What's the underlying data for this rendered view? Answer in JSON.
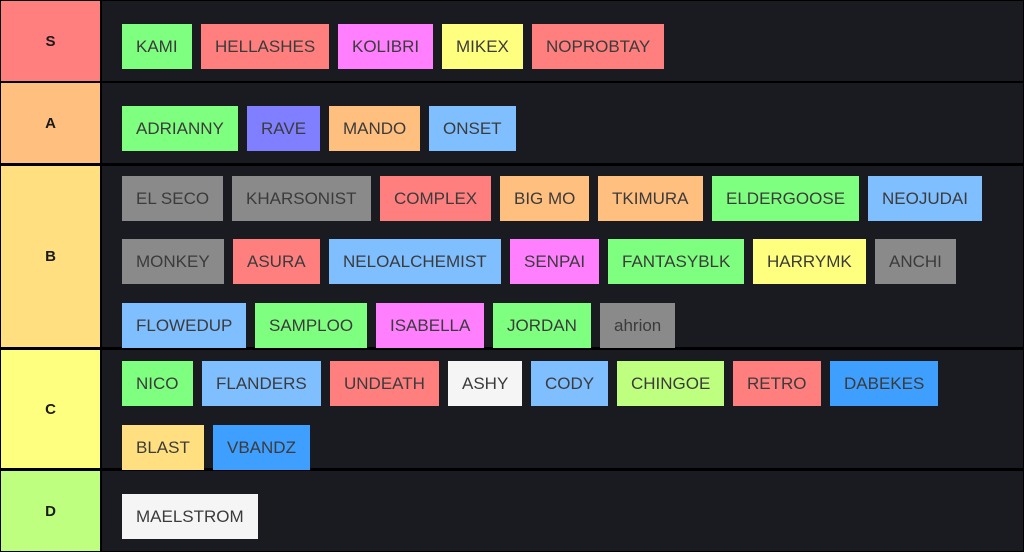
{
  "tiers": [
    {
      "label": "S",
      "color": "#ff7f7f",
      "rows": [
        [
          {
            "text": "KAMI",
            "color": "#7fff7f"
          },
          {
            "text": "HELLASHES",
            "color": "#ff7f7f"
          },
          {
            "text": "KOLIBRI",
            "color": "#ff7fff"
          },
          {
            "text": "MIKEX",
            "color": "#ffff7f"
          },
          {
            "text": "NOPROBTAY",
            "color": "#ff7f7f"
          }
        ]
      ]
    },
    {
      "label": "A",
      "color": "#ffbf7f",
      "rows": [
        [
          {
            "text": "ADRIANNY",
            "color": "#7fff7f"
          },
          {
            "text": "RAVE",
            "color": "#7f7fff"
          },
          {
            "text": "MANDO",
            "color": "#ffbf7f"
          },
          {
            "text": "ONSET",
            "color": "#7fbfff"
          }
        ]
      ]
    },
    {
      "label": "B",
      "color": "#ffdf7f",
      "rows": [
        [
          {
            "text": "EL SECO",
            "color": "#8a8a8a"
          },
          {
            "text": "KHARSONIST",
            "color": "#8a8a8a"
          },
          {
            "text": "COMPLEX",
            "color": "#ff7f7f"
          },
          {
            "text": "BIG MO",
            "color": "#ffbf7f"
          },
          {
            "text": "TKIMURA",
            "color": "#ffbf7f"
          },
          {
            "text": "ELDERGOOSE",
            "color": "#7fff7f"
          },
          {
            "text": "NEOJUDAI",
            "color": "#7fbfff"
          }
        ],
        [
          {
            "text": "MONKEY",
            "color": "#8a8a8a"
          },
          {
            "text": "ASURA",
            "color": "#ff7f7f"
          },
          {
            "text": "NELOALCHEMIST",
            "color": "#7fbfff"
          },
          {
            "text": "SENPAI",
            "color": "#ff7fff"
          },
          {
            "text": "FANTASYBLK",
            "color": "#7fff7f"
          },
          {
            "text": "HARRYMK",
            "color": "#ffff7f"
          },
          {
            "text": "ANCHI",
            "color": "#8a8a8a"
          }
        ],
        [
          {
            "text": "FLOWEDUP",
            "color": "#7fbfff"
          },
          {
            "text": "SAMPLOO",
            "color": "#7fff7f"
          },
          {
            "text": "ISABELLA",
            "color": "#ff7fff"
          },
          {
            "text": "JORDAN",
            "color": "#7fff7f"
          },
          {
            "text": "ahrion",
            "color": "#8a8a8a"
          }
        ]
      ]
    },
    {
      "label": "C",
      "color": "#ffff7f",
      "rows": [
        [
          {
            "text": "NICO",
            "color": "#7fff7f"
          },
          {
            "text": "FLANDERS",
            "color": "#7fbfff"
          },
          {
            "text": "UNDEATH",
            "color": "#ff7f7f"
          },
          {
            "text": "ASHY",
            "color": "#f5f5f5"
          },
          {
            "text": "CODY",
            "color": "#7fbfff"
          },
          {
            "text": "CHINGOE",
            "color": "#bfff7f"
          },
          {
            "text": "RETRO",
            "color": "#ff7f7f"
          },
          {
            "text": "DABEKES",
            "color": "#3f9fff"
          }
        ],
        [
          {
            "text": "BLAST",
            "color": "#ffdf7f"
          },
          {
            "text": "VBANDZ",
            "color": "#3f9fff"
          }
        ]
      ]
    },
    {
      "label": "D",
      "color": "#bfff7f",
      "rows": [
        [
          {
            "text": "MAELSTROM",
            "color": "#f5f5f5"
          }
        ]
      ]
    }
  ]
}
